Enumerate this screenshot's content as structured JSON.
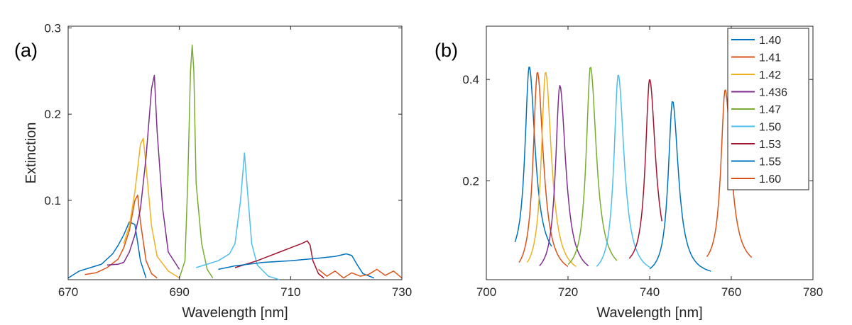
{
  "colors": [
    "#0072BD",
    "#D95319",
    "#EDB120",
    "#7E2F8E",
    "#77AC30",
    "#4DBEEE",
    "#A2142F",
    "#0072BD",
    "#D95319"
  ],
  "chart_data": [
    {
      "type": "line",
      "panel_label": "(a)",
      "xlabel": "Wavelength [nm]",
      "ylabel": "Extinction",
      "xlim": [
        670,
        730
      ],
      "ylim": [
        0.008,
        0.302
      ],
      "xticks": [
        670,
        690,
        710,
        730
      ],
      "xtick_labels": [
        "670",
        "690",
        "710",
        "730"
      ],
      "yticks": [
        0.1,
        0.2,
        0.3
      ],
      "ytick_labels": [
        "0.1",
        "0.2",
        "0.3"
      ],
      "series": [
        {
          "x": [
            670,
            672,
            674,
            676,
            678,
            679,
            680,
            681,
            682,
            683,
            684
          ],
          "y": [
            0.01,
            0.018,
            0.022,
            0.026,
            0.038,
            0.048,
            0.06,
            0.075,
            0.072,
            0.03,
            0.01
          ]
        },
        {
          "x": [
            673,
            675,
            677,
            679,
            680,
            681,
            682,
            682.5,
            683,
            684,
            685,
            686
          ],
          "y": [
            0.014,
            0.016,
            0.022,
            0.032,
            0.045,
            0.065,
            0.1,
            0.106,
            0.075,
            0.03,
            0.015,
            0.01
          ]
        },
        {
          "x": [
            680,
            681,
            682,
            683,
            683.5,
            684,
            685,
            686,
            688,
            690
          ],
          "y": [
            0.05,
            0.07,
            0.11,
            0.165,
            0.172,
            0.14,
            0.07,
            0.035,
            0.018,
            0.01
          ]
        },
        {
          "x": [
            677,
            679,
            680,
            681,
            682,
            683,
            684,
            685,
            685.5,
            686,
            687,
            688,
            690
          ],
          "y": [
            0.025,
            0.026,
            0.028,
            0.04,
            0.06,
            0.09,
            0.15,
            0.23,
            0.245,
            0.18,
            0.09,
            0.04,
            0.02
          ]
        },
        {
          "x": [
            690,
            691,
            691.5,
            692,
            692.3,
            692.6,
            693,
            694,
            695,
            696
          ],
          "y": [
            0.01,
            0.03,
            0.12,
            0.25,
            0.28,
            0.25,
            0.12,
            0.05,
            0.02,
            0.01
          ]
        },
        {
          "x": [
            693,
            695,
            697,
            699,
            700,
            701,
            701.7,
            702,
            703,
            704,
            706,
            708
          ],
          "y": [
            0.022,
            0.026,
            0.03,
            0.038,
            0.05,
            0.1,
            0.155,
            0.13,
            0.05,
            0.025,
            0.012,
            0.008
          ]
        },
        {
          "x": [
            700,
            702,
            704,
            706,
            708,
            710,
            712,
            713,
            713.5,
            714,
            715,
            716
          ],
          "y": [
            0.022,
            0.026,
            0.03,
            0.035,
            0.04,
            0.045,
            0.05,
            0.053,
            0.048,
            0.03,
            0.015,
            0.01
          ]
        },
        {
          "x": [
            697,
            700,
            705,
            710,
            715,
            718,
            720,
            721,
            722,
            723,
            725
          ],
          "y": [
            0.02,
            0.024,
            0.028,
            0.03,
            0.033,
            0.035,
            0.038,
            0.036,
            0.025,
            0.015,
            0.01
          ]
        },
        {
          "x": [
            715,
            716.5,
            718,
            719.5,
            721,
            722.5,
            724,
            725.5,
            727,
            728.5,
            730
          ],
          "y": [
            0.02,
            0.012,
            0.018,
            0.01,
            0.016,
            0.012,
            0.014,
            0.02,
            0.013,
            0.018,
            0.01
          ]
        }
      ]
    },
    {
      "type": "line",
      "panel_label": "(b)",
      "xlabel": "Wavelength [nm]",
      "ylabel": "",
      "xlim": [
        700,
        780
      ],
      "ylim": [
        0.005,
        0.505
      ],
      "xticks": [
        700,
        720,
        740,
        760,
        780
      ],
      "xtick_labels": [
        "700",
        "720",
        "740",
        "760",
        "780"
      ],
      "yticks": [
        0.2,
        0.4
      ],
      "ytick_labels": [
        "0.2",
        "0.4"
      ],
      "legend_position": "top-right",
      "series": [
        {
          "name": "1.40",
          "center": 710.5,
          "peak": 0.425,
          "start": 707,
          "end": 716,
          "tail": 0.035
        },
        {
          "name": "1.41",
          "center": 712.5,
          "peak": 0.415,
          "start": 708,
          "end": 720,
          "tail": 0.01
        },
        {
          "name": "1.42",
          "center": 714.5,
          "peak": 0.415,
          "start": 710,
          "end": 722,
          "tail": 0.01
        },
        {
          "name": "1.436",
          "center": 718,
          "peak": 0.388,
          "start": 713,
          "end": 725,
          "tail": 0.01
        },
        {
          "name": "1.47",
          "center": 725.5,
          "peak": 0.425,
          "start": 720,
          "end": 732,
          "tail": 0.015
        },
        {
          "name": "1.50",
          "center": 732.3,
          "peak": 0.41,
          "start": 727,
          "end": 740,
          "tail": 0.01
        },
        {
          "name": "1.53",
          "center": 740,
          "peak": 0.4,
          "start": 735,
          "end": 743,
          "tail": 0.025
        },
        {
          "name": "1.55",
          "center": 745.6,
          "peak": 0.358,
          "start": 740,
          "end": 755,
          "tail": 0.01
        },
        {
          "name": "1.60",
          "center": 758.5,
          "peak": 0.38,
          "start": 754,
          "end": 765,
          "tail": 0.025
        }
      ]
    }
  ]
}
